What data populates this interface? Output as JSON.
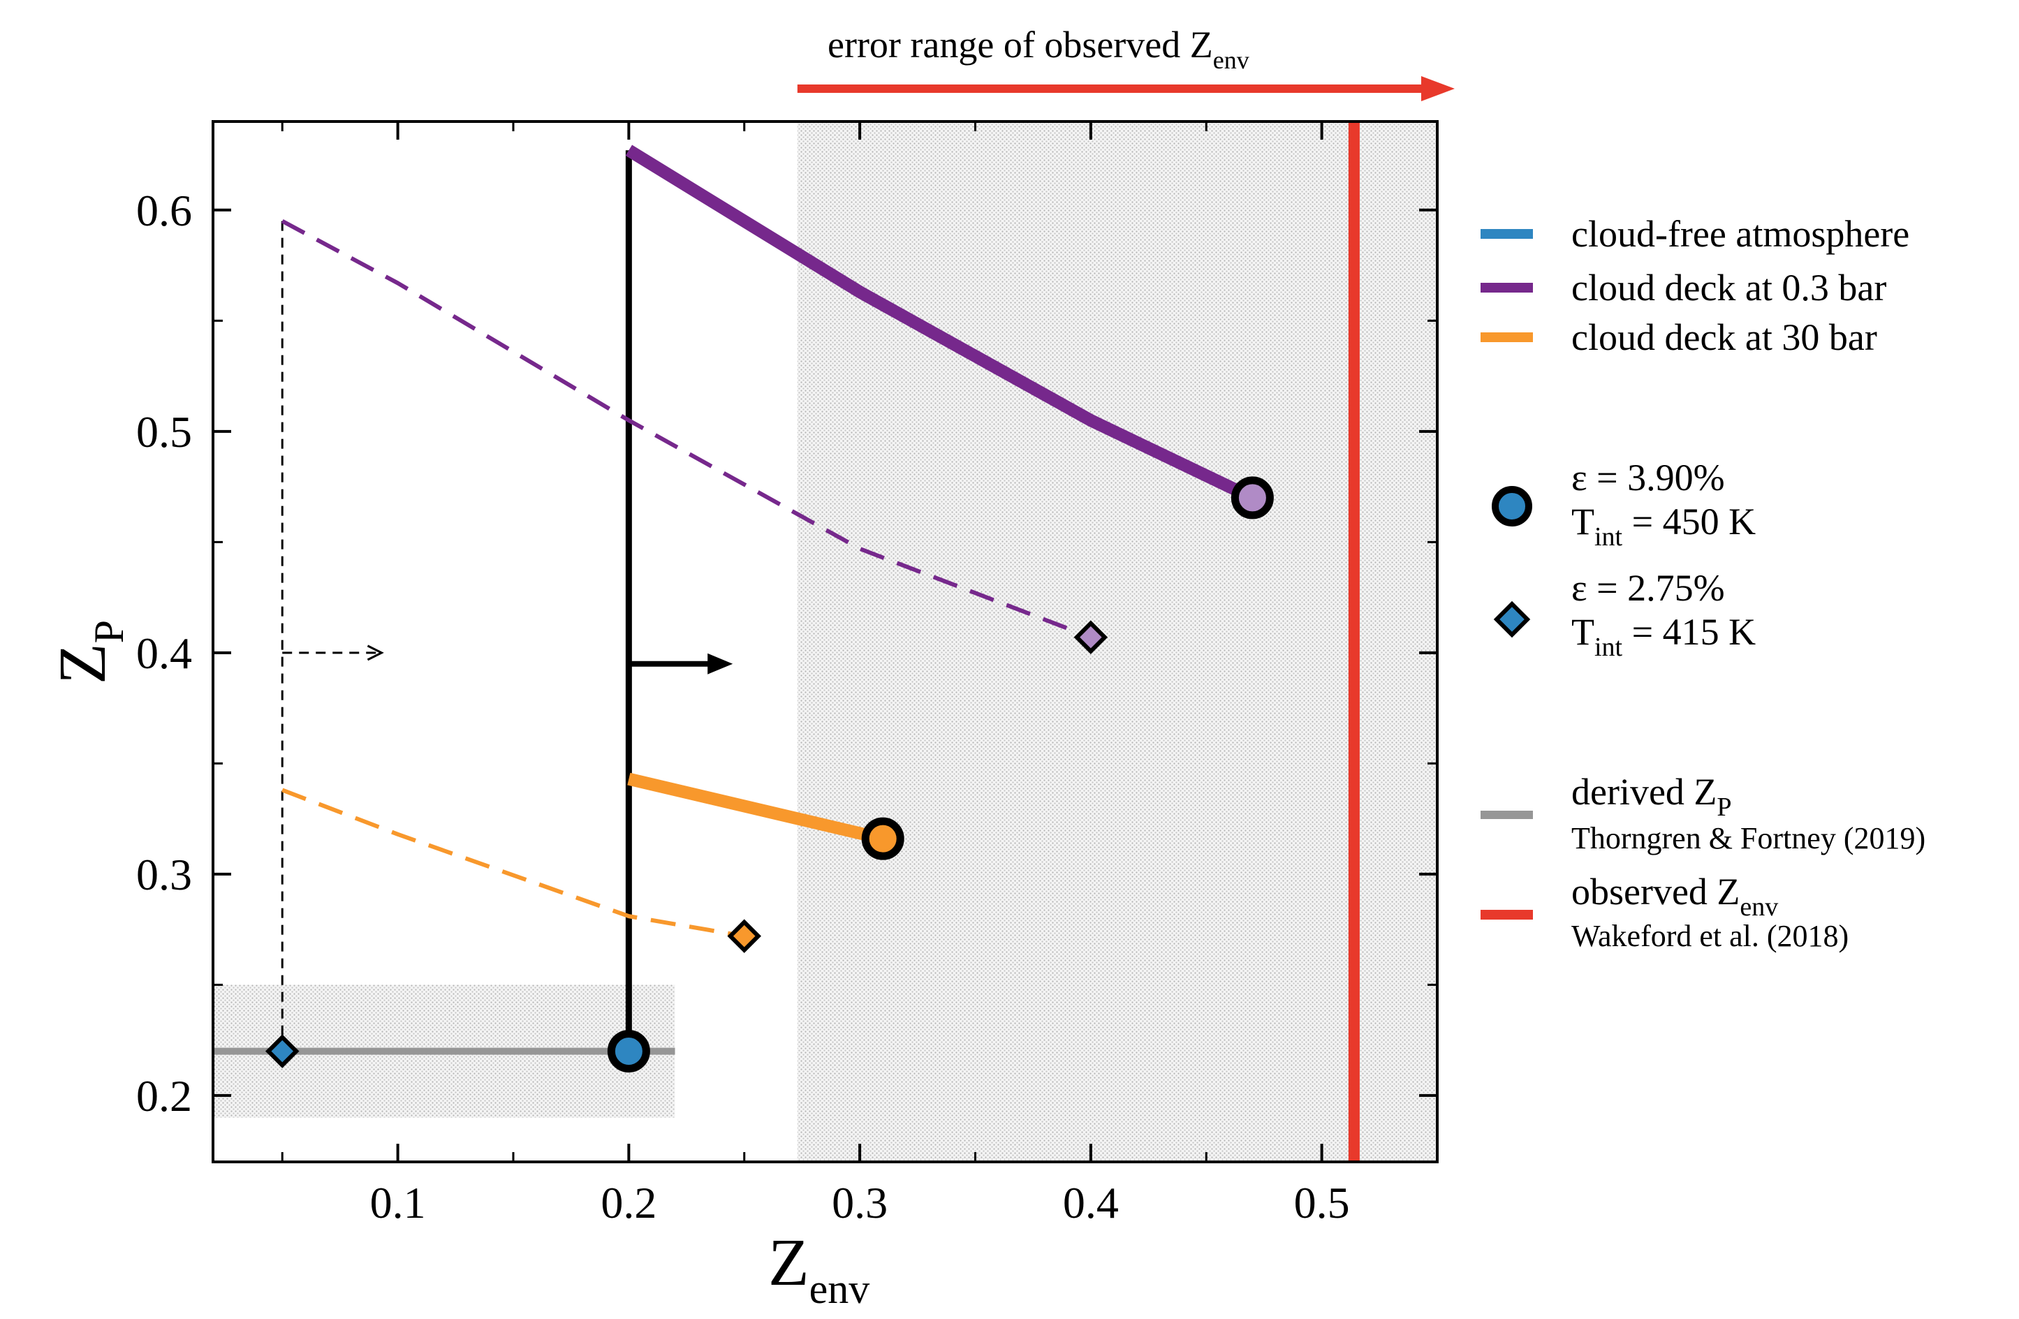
{
  "chart_data": {
    "type": "line",
    "xlabel": {
      "base": "Z",
      "sub": "env"
    },
    "ylabel": {
      "base": "Z",
      "sub": "P"
    },
    "xlim": [
      0.02,
      0.55
    ],
    "ylim": [
      0.17,
      0.64
    ],
    "x_ticks": [
      0.1,
      0.2,
      0.3,
      0.4,
      0.5
    ],
    "x_tick_labels": [
      "0.1",
      "0.2",
      "0.3",
      "0.4",
      "0.5"
    ],
    "y_ticks": [
      0.2,
      0.3,
      0.4,
      0.5,
      0.6
    ],
    "y_tick_labels": [
      "0.2",
      "0.3",
      "0.4",
      "0.5",
      "0.6"
    ],
    "colors": {
      "cloud_free": "#2e86c1",
      "cloud_03": "#76288c",
      "cloud_03_light": "#b08bc6",
      "cloud_30": "#f8982c",
      "derived": "#969696",
      "observed": "#e8392b"
    },
    "observed_zenv": {
      "value": 0.514,
      "error_lower": 0.273,
      "error_upper": 0.55
    },
    "derived_zp": {
      "value": 0.22,
      "lower": 0.19,
      "upper": 0.25,
      "x_range": [
        0.02,
        0.22
      ]
    },
    "series": [
      {
        "name": "cloud deck at 0.3 bar, ε = 3.90%",
        "style": "solid",
        "color_key": "cloud_03",
        "points": [
          [
            0.2,
            0.627
          ],
          [
            0.3,
            0.563
          ],
          [
            0.4,
            0.505
          ],
          [
            0.47,
            0.47
          ]
        ]
      },
      {
        "name": "cloud deck at 0.3 bar, ε = 2.75%",
        "style": "dashed",
        "color_key": "cloud_03",
        "points": [
          [
            0.05,
            0.595
          ],
          [
            0.1,
            0.567
          ],
          [
            0.2,
            0.505
          ],
          [
            0.3,
            0.447
          ],
          [
            0.4,
            0.407
          ]
        ]
      },
      {
        "name": "cloud deck at 30 bar, ε = 3.90%",
        "style": "solid",
        "color_key": "cloud_30",
        "points": [
          [
            0.2,
            0.343
          ],
          [
            0.31,
            0.316
          ]
        ]
      },
      {
        "name": "cloud deck at 30 bar, ε = 2.75%",
        "style": "dashed",
        "color_key": "cloud_30",
        "points": [
          [
            0.05,
            0.338
          ],
          [
            0.1,
            0.318
          ],
          [
            0.2,
            0.281
          ],
          [
            0.25,
            0.272
          ]
        ]
      }
    ],
    "markers": [
      {
        "shape": "circle",
        "x": 0.2,
        "y": 0.22,
        "color_key": "cloud_free"
      },
      {
        "shape": "circle",
        "x": 0.31,
        "y": 0.316,
        "color_key": "cloud_30"
      },
      {
        "shape": "circle",
        "x": 0.47,
        "y": 0.47,
        "color_key": "cloud_03_light"
      },
      {
        "shape": "diamond",
        "x": 0.05,
        "y": 0.22,
        "color_key": "cloud_free"
      },
      {
        "shape": "diamond",
        "x": 0.25,
        "y": 0.272,
        "color_key": "cloud_30"
      },
      {
        "shape": "diamond",
        "x": 0.4,
        "y": 0.407,
        "color_key": "cloud_03_light"
      }
    ],
    "lower_bounds": [
      {
        "x": 0.2,
        "y_range": [
          0.22,
          0.627
        ],
        "arrow_y": 0.395,
        "arrow_to_x": 0.245,
        "style": "solid"
      },
      {
        "x": 0.05,
        "y_range": [
          0.22,
          0.595
        ],
        "arrow_y": 0.4,
        "arrow_to_x": 0.093,
        "style": "dashed"
      }
    ],
    "annotation": {
      "base": "error range of observed Z",
      "sub": "env"
    },
    "legend": {
      "position": "right",
      "items": [
        {
          "label": "cloud-free atmosphere",
          "color_key": "cloud_free",
          "kind": "line"
        },
        {
          "label": "cloud deck at 0.3 bar",
          "color_key": "cloud_03",
          "kind": "line"
        },
        {
          "label": "cloud deck at 30 bar",
          "color_key": "cloud_30",
          "kind": "line"
        }
      ],
      "marker_items": [
        {
          "shape": "circle",
          "line1": "ε = 3.90%",
          "line2_base": "T",
          "line2_sub": "int",
          "line2_rest": " = 450 K"
        },
        {
          "shape": "diamond",
          "line1": "ε = 2.75%",
          "line2_base": "T",
          "line2_sub": "int",
          "line2_rest": " = 415 K"
        }
      ],
      "ref_items": [
        {
          "base": "derived Z",
          "sub": "P",
          "ref": "Thorngren & Fortney (2019)",
          "color_key": "derived"
        },
        {
          "base": "observed Z",
          "sub": "env",
          "ref": "Wakeford et al. (2018)",
          "color_key": "observed"
        }
      ]
    }
  }
}
